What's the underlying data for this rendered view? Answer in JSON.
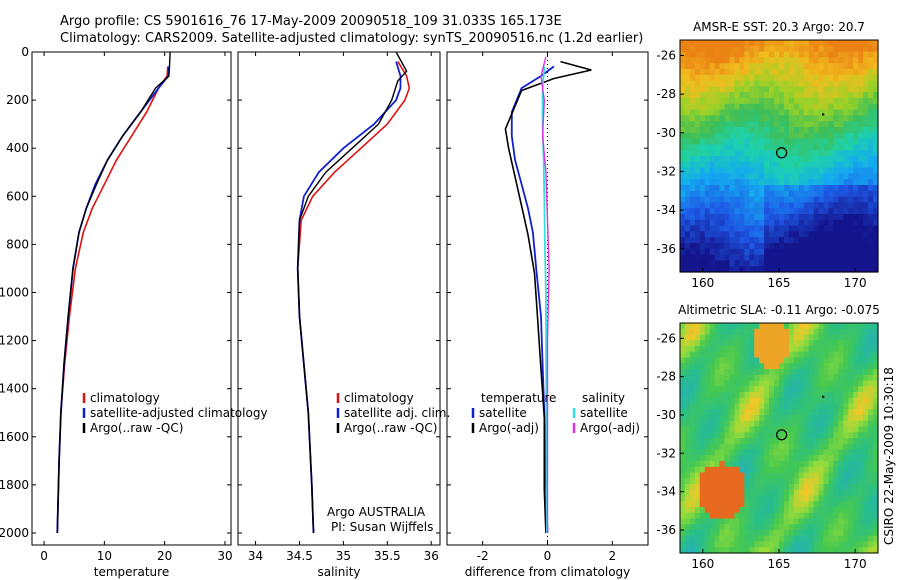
{
  "header": {
    "line1": "Argo profile: CS 5901616_76 17-May-2009 20090518_109 31.033S 165.173E",
    "line2": "Climatology: CARS2009. Satellite-adjusted climatology: synTS_20090516.nc (1.2d earlier)"
  },
  "colors": {
    "climatology": "#e01010",
    "satellite": "#1020d0",
    "argo": "#000000",
    "sat_sal": "#30e0e0",
    "argo_sal": "#e030e0"
  },
  "side_text": "CSIRO 22-May-2009 10:30:18",
  "chart_data": [
    {
      "type": "line",
      "id": "temperature",
      "xlabel": "temperature",
      "xlim": [
        -2,
        31
      ],
      "ylim": [
        0,
        2050
      ],
      "y_reversed": true,
      "xticks": [
        "0",
        "10",
        "20",
        "30"
      ],
      "yticks": [
        "0",
        "200",
        "400",
        "600",
        "800",
        "1000",
        "1200",
        "1400",
        "1600",
        "1800",
        "2000"
      ],
      "legend": [
        "climatology",
        "satellite-adjusted climatology",
        "Argo(..raw -QC)"
      ],
      "series": [
        {
          "name": "climatology",
          "x": [
            20.5,
            20.4,
            19,
            17,
            14.5,
            12,
            10,
            8,
            6.5,
            5.2,
            4.2,
            3.4,
            2.8,
            2.5,
            2.3,
            2.2
          ],
          "y": [
            60,
            100,
            150,
            250,
            350,
            450,
            550,
            650,
            750,
            900,
            1100,
            1300,
            1500,
            1700,
            1900,
            2000
          ]
        },
        {
          "name": "satellite-adjusted climatology",
          "x": [
            20.7,
            20.6,
            19,
            16,
            13,
            10.5,
            8.5,
            7,
            5.8,
            4.8,
            4,
            3.3,
            2.8,
            2.5,
            2.3,
            2.2
          ],
          "y": [
            60,
            100,
            150,
            250,
            350,
            450,
            550,
            650,
            750,
            900,
            1100,
            1300,
            1500,
            1700,
            1900,
            2000
          ]
        },
        {
          "name": "Argo(..raw -QC)",
          "x": [
            20.9,
            20.8,
            20.7,
            18.5,
            16,
            13,
            10.5,
            8.7,
            7,
            5.8,
            4.8,
            4,
            3.3,
            2.8,
            2.5,
            2.3,
            2.2
          ],
          "y": [
            0,
            60,
            100,
            150,
            250,
            350,
            450,
            550,
            650,
            750,
            900,
            1100,
            1300,
            1500,
            1700,
            1900,
            2000
          ]
        }
      ]
    },
    {
      "type": "line",
      "id": "salinity",
      "xlabel": "salinity",
      "xlim": [
        33.8,
        36.1
      ],
      "ylim": [
        0,
        2050
      ],
      "y_reversed": true,
      "xticks": [
        "34",
        "34.5",
        "35",
        "35.5",
        "36"
      ],
      "legend": [
        "climatology",
        "satellite adj. clim.",
        "Argo(..raw -QC)"
      ],
      "note1": "Argo AUSTRALIA",
      "note2": "PI: Susan Wijffels",
      "series": [
        {
          "name": "climatology",
          "x": [
            35.62,
            35.72,
            35.75,
            35.7,
            35.5,
            35.2,
            34.9,
            34.65,
            34.52,
            34.48,
            34.5,
            34.55,
            34.6,
            34.64,
            34.66
          ],
          "y": [
            40,
            100,
            150,
            200,
            300,
            400,
            500,
            600,
            700,
            900,
            1100,
            1300,
            1500,
            1800,
            2000
          ]
        },
        {
          "name": "satellite adj. clim.",
          "x": [
            35.6,
            35.65,
            35.65,
            35.6,
            35.35,
            35.0,
            34.72,
            34.55,
            34.5,
            34.48,
            34.5,
            34.55,
            34.6,
            34.64,
            34.66
          ],
          "y": [
            40,
            100,
            150,
            200,
            300,
            400,
            500,
            600,
            700,
            900,
            1100,
            1300,
            1500,
            1800,
            2000
          ]
        },
        {
          "name": "Argo(..raw -QC)",
          "x": [
            35.6,
            35.72,
            35.62,
            35.55,
            35.4,
            35.1,
            34.8,
            34.6,
            34.5,
            34.48,
            34.5,
            34.55,
            34.6,
            34.64,
            34.66
          ],
          "y": [
            0,
            80,
            120,
            200,
            300,
            400,
            500,
            600,
            700,
            900,
            1100,
            1300,
            1500,
            1800,
            2000
          ]
        }
      ]
    },
    {
      "type": "line",
      "id": "difference",
      "xlabel": "difference from climatology",
      "xlim": [
        -3.1,
        3.1
      ],
      "ylim": [
        0,
        2050
      ],
      "y_reversed": true,
      "xticks": [
        "-2",
        "0",
        "2"
      ],
      "legend_temp_title": "temperature",
      "legend_sal_title": "salinity",
      "legend_temp": [
        "satellite",
        "Argo(-adj)"
      ],
      "legend_sal": [
        "satellite",
        "Argo(-adj)"
      ],
      "series": [
        {
          "name": "satellite",
          "x": [
            0.2,
            -0.2,
            -0.8,
            -1.1,
            -1.1,
            -1.0,
            -0.8,
            -0.6,
            -0.45,
            -0.35,
            -0.2,
            -0.15,
            -0.1,
            -0.05,
            0
          ],
          "y": [
            60,
            100,
            150,
            250,
            350,
            450,
            550,
            650,
            750,
            900,
            1100,
            1300,
            1500,
            1800,
            2000
          ]
        },
        {
          "name": "Argo(-adj)",
          "x": [
            0.4,
            1.35,
            0.2,
            -0.8,
            -1.3,
            -1.2,
            -1.0,
            -0.8,
            -0.6,
            -0.4,
            -0.3,
            -0.2,
            -0.1,
            -0.1,
            -0.05
          ],
          "y": [
            40,
            75,
            110,
            160,
            320,
            400,
            520,
            640,
            760,
            920,
            1120,
            1320,
            1520,
            1820,
            2000
          ]
        },
        {
          "name": "sal satellite",
          "x": [
            -0.1,
            -0.15,
            -0.15,
            -0.12,
            -0.1,
            -0.08,
            -0.05,
            -0.04,
            -0.03,
            -0.02
          ],
          "y": [
            60,
            150,
            300,
            450,
            600,
            800,
            1000,
            1300,
            1600,
            2000
          ]
        },
        {
          "name": "sal Argo(-adj)",
          "x": [
            -0.05,
            -0.2,
            -0.1,
            -0.15,
            -0.05,
            0,
            0.05,
            0,
            0,
            0
          ],
          "y": [
            20,
            100,
            200,
            350,
            500,
            700,
            900,
            1200,
            1600,
            2000
          ]
        }
      ]
    },
    {
      "type": "heatmap",
      "id": "sst",
      "title": "AMSR-E SST: 20.3 Argo: 20.7",
      "xticks": [
        "160",
        "165",
        "170"
      ],
      "yticks": [
        "-26",
        "-28",
        "-30",
        "-32",
        "-34",
        "-36"
      ],
      "xlim": [
        158.5,
        171.5
      ],
      "ylim": [
        -37.2,
        -25.2
      ],
      "float_lon": 165.173,
      "float_lat": -31.033
    },
    {
      "type": "heatmap",
      "id": "sla",
      "title": "Altimetric SLA: -0.11 Argo: -0.075",
      "xticks": [
        "160",
        "165",
        "170"
      ],
      "yticks": [
        "-26",
        "-28",
        "-30",
        "-32",
        "-34",
        "-36"
      ],
      "xlim": [
        158.5,
        171.5
      ],
      "ylim": [
        -37.2,
        -25.2
      ],
      "float_lon": 165.173,
      "float_lat": -31.033
    }
  ]
}
